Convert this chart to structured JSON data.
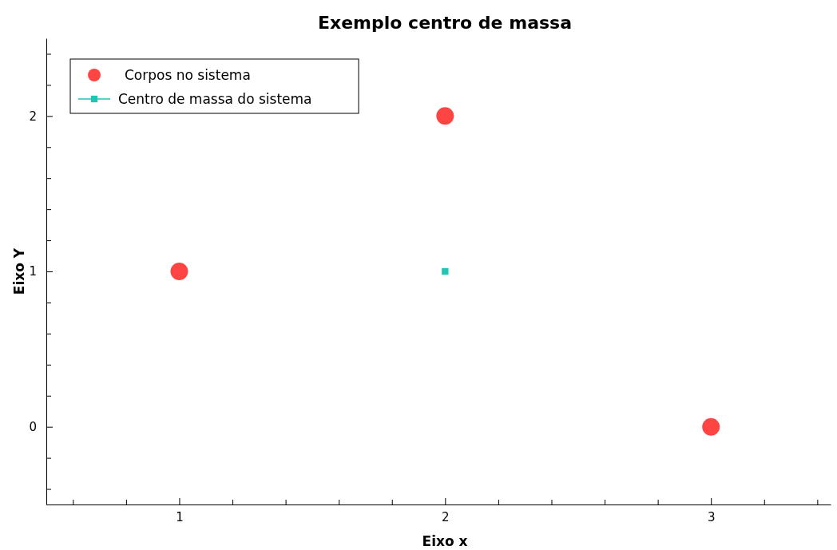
{
  "chart_data": {
    "type": "scatter",
    "title": "Exemplo centro de massa",
    "xlabel": "Eixo x",
    "ylabel": "Eixo Y",
    "xlim": [
      0.5,
      3.45
    ],
    "xticks": [
      {
        "value": 0.6,
        "label": null
      },
      {
        "value": 0.8,
        "label": null
      },
      1,
      {
        "value": 1.2,
        "label": null
      },
      {
        "value": 1.4,
        "label": null
      },
      {
        "value": 1.6,
        "label": null
      },
      {
        "value": 1.8,
        "label": null
      },
      2,
      {
        "value": 2.2,
        "label": null
      },
      {
        "value": 2.4,
        "label": null
      },
      {
        "value": 2.6,
        "label": null
      },
      {
        "value": 2.8,
        "label": null
      },
      3,
      {
        "value": 3.2,
        "label": null
      },
      {
        "value": 3.4,
        "label": null
      }
    ],
    "ylim": [
      -0.5,
      2.5
    ],
    "yticks": [
      {
        "value": -0.4,
        "label": null
      },
      {
        "value": -0.2,
        "label": null
      },
      0,
      {
        "value": 0.2,
        "label": null
      },
      {
        "value": 0.4,
        "label": null
      },
      {
        "value": 0.6,
        "label": null
      },
      {
        "value": 0.8,
        "label": null
      },
      1,
      {
        "value": 1.2,
        "label": null
      },
      {
        "value": 1.4,
        "label": null
      },
      {
        "value": 1.6,
        "label": null
      },
      {
        "value": 1.8,
        "label": null
      },
      2,
      {
        "value": 2.2,
        "label": null
      },
      {
        "value": 2.4,
        "label": null
      }
    ],
    "grid": false,
    "legend": "top left",
    "series": [
      {
        "name": "Corpos no sistema",
        "marker": "circle",
        "color": "#ff4444",
        "x": [
          1,
          2,
          3
        ],
        "values": [
          1,
          2,
          0
        ]
      },
      {
        "name": "Centro de massa do sistema",
        "type": "line",
        "marker": "square",
        "color": "#22c4b4",
        "x": [
          2
        ],
        "values": [
          1
        ]
      }
    ]
  }
}
